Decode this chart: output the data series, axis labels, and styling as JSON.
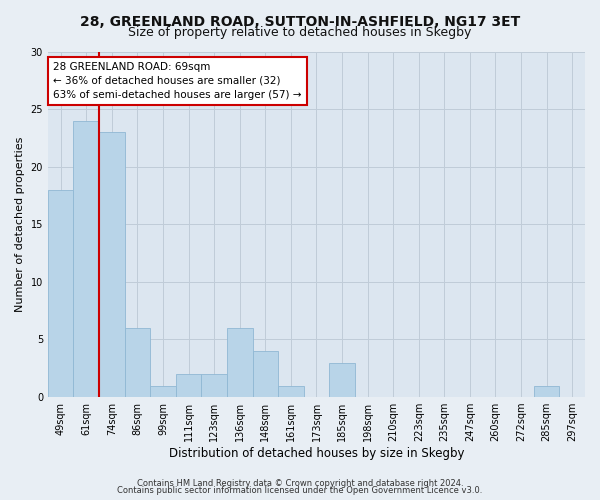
{
  "title1": "28, GREENLAND ROAD, SUTTON-IN-ASHFIELD, NG17 3ET",
  "title2": "Size of property relative to detached houses in Skegby",
  "xlabel": "Distribution of detached houses by size in Skegby",
  "ylabel": "Number of detached properties",
  "bar_labels": [
    "49sqm",
    "61sqm",
    "74sqm",
    "86sqm",
    "99sqm",
    "111sqm",
    "123sqm",
    "136sqm",
    "148sqm",
    "161sqm",
    "173sqm",
    "185sqm",
    "198sqm",
    "210sqm",
    "223sqm",
    "235sqm",
    "247sqm",
    "260sqm",
    "272sqm",
    "285sqm",
    "297sqm"
  ],
  "bar_values": [
    18,
    24,
    23,
    6,
    1,
    2,
    2,
    6,
    4,
    1,
    0,
    3,
    0,
    0,
    0,
    0,
    0,
    0,
    0,
    1,
    0
  ],
  "bar_color": "#b8d4e8",
  "bar_edge_color": "#90b8d4",
  "vline_x": 1.5,
  "vline_color": "#cc0000",
  "annotation_line1": "28 GREENLAND ROAD: 69sqm",
  "annotation_line2": "← 36% of detached houses are smaller (32)",
  "annotation_line3": "63% of semi-detached houses are larger (57) →",
  "annotation_box_color": "#ffffff",
  "annotation_box_edge": "#cc0000",
  "ylim": [
    0,
    30
  ],
  "yticks": [
    0,
    5,
    10,
    15,
    20,
    25,
    30
  ],
  "footer1": "Contains HM Land Registry data © Crown copyright and database right 2024.",
  "footer2": "Contains public sector information licensed under the Open Government Licence v3.0.",
  "bg_color": "#e8eef4",
  "plot_bg_color": "#dce6f0",
  "grid_color": "#c0ccd8",
  "title1_fontsize": 10,
  "title2_fontsize": 9,
  "xlabel_fontsize": 8.5,
  "ylabel_fontsize": 8,
  "tick_fontsize": 7,
  "annot_fontsize": 7.5,
  "footer_fontsize": 6
}
